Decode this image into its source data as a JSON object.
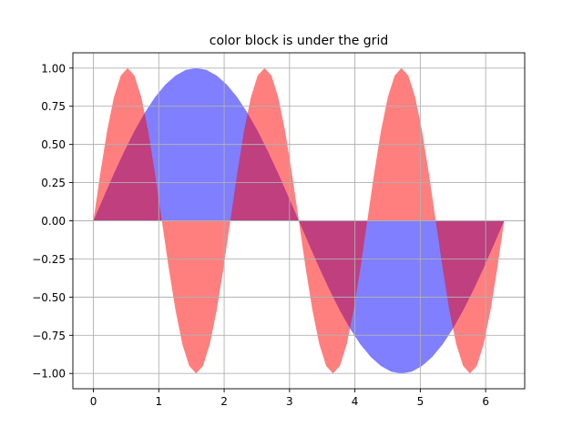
{
  "chart_data": {
    "type": "area",
    "title": "color block is under the grid",
    "xlabel": "",
    "ylabel": "",
    "xlim": [
      -0.314,
      6.597
    ],
    "ylim": [
      -1.1,
      1.1
    ],
    "grid": true,
    "x_ticks": [
      0,
      1,
      2,
      3,
      4,
      5,
      6
    ],
    "x_tick_labels": [
      "0",
      "1",
      "2",
      "3",
      "4",
      "5",
      "6"
    ],
    "y_ticks": [
      -1.0,
      -0.75,
      -0.5,
      -0.25,
      0.0,
      0.25,
      0.5,
      0.75,
      1.0
    ],
    "y_tick_labels": [
      "−1.00",
      "−0.75",
      "−0.50",
      "−0.25",
      "0.00",
      "0.25",
      "0.50",
      "0.75",
      "1.00"
    ],
    "series": [
      {
        "color": "#0000ff",
        "alpha": 0.5,
        "x": [
          0,
          0.157,
          0.314,
          0.471,
          0.628,
          0.785,
          0.942,
          1.1,
          1.257,
          1.414,
          1.571,
          1.728,
          1.885,
          2.042,
          2.199,
          2.356,
          2.513,
          2.67,
          2.827,
          2.985,
          3.142,
          3.299,
          3.456,
          3.613,
          3.77,
          3.927,
          4.084,
          4.241,
          4.398,
          4.555,
          4.712,
          4.869,
          5.027,
          5.184,
          5.341,
          5.498,
          5.655,
          5.812,
          5.969,
          6.126,
          6.283
        ],
        "values": [
          0,
          0.156,
          0.309,
          0.454,
          0.588,
          0.707,
          0.809,
          0.891,
          0.951,
          0.988,
          1.0,
          0.988,
          0.951,
          0.891,
          0.809,
          0.707,
          0.588,
          0.454,
          0.309,
          0.156,
          0,
          -0.156,
          -0.309,
          -0.454,
          -0.588,
          -0.707,
          -0.809,
          -0.891,
          -0.951,
          -0.988,
          -1.0,
          -0.988,
          -0.951,
          -0.891,
          -0.809,
          -0.707,
          -0.588,
          -0.454,
          -0.309,
          -0.156,
          0
        ]
      },
      {
        "color": "#ff0000",
        "alpha": 0.5,
        "x": [
          0,
          0.105,
          0.209,
          0.314,
          0.419,
          0.524,
          0.628,
          0.733,
          0.838,
          0.942,
          1.047,
          1.152,
          1.257,
          1.361,
          1.466,
          1.571,
          1.676,
          1.78,
          1.885,
          1.99,
          2.094,
          2.199,
          2.304,
          2.409,
          2.513,
          2.618,
          2.723,
          2.827,
          2.932,
          3.037,
          3.142,
          3.246,
          3.351,
          3.456,
          3.56,
          3.665,
          3.77,
          3.875,
          3.979,
          4.084,
          4.189,
          4.294,
          4.398,
          4.503,
          4.608,
          4.712,
          4.817,
          4.922,
          5.027,
          5.131,
          5.236,
          5.341,
          5.445,
          5.55,
          5.655,
          5.76,
          5.864,
          5.969,
          6.074,
          6.178,
          6.283
        ],
        "values": [
          0,
          0.309,
          0.588,
          0.809,
          0.951,
          1.0,
          0.951,
          0.809,
          0.588,
          0.309,
          0,
          -0.309,
          -0.588,
          -0.809,
          -0.951,
          -1.0,
          -0.951,
          -0.809,
          -0.588,
          -0.309,
          0,
          0.309,
          0.588,
          0.809,
          0.951,
          1.0,
          0.951,
          0.809,
          0.588,
          0.309,
          0,
          -0.309,
          -0.588,
          -0.809,
          -0.951,
          -1.0,
          -0.951,
          -0.809,
          -0.588,
          -0.309,
          0,
          0.309,
          0.588,
          0.809,
          0.951,
          1.0,
          0.951,
          0.809,
          0.588,
          0.309,
          0,
          -0.309,
          -0.588,
          -0.809,
          -0.951,
          -1.0,
          -0.951,
          -0.809,
          -0.588,
          -0.309,
          0
        ]
      }
    ]
  }
}
